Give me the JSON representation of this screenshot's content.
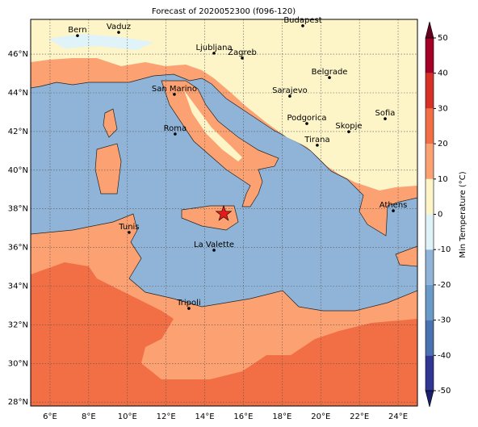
{
  "chart_data": {
    "type": "map",
    "title": "Forecast of 2020052300 (f096-120)",
    "xlim": [
      5,
      25
    ],
    "ylim": [
      27.8,
      47.8
    ],
    "xticks": [
      {
        "value": 6,
        "label": "6°E"
      },
      {
        "value": 8,
        "label": "8°E"
      },
      {
        "value": 10,
        "label": "10°E"
      },
      {
        "value": 12,
        "label": "12°E"
      },
      {
        "value": 14,
        "label": "14°E"
      },
      {
        "value": 16,
        "label": "16°E"
      },
      {
        "value": 18,
        "label": "18°E"
      },
      {
        "value": 20,
        "label": "20°E"
      },
      {
        "value": 22,
        "label": "22°E"
      },
      {
        "value": 24,
        "label": "24°E"
      }
    ],
    "yticks": [
      {
        "value": 28,
        "label": "28°N"
      },
      {
        "value": 30,
        "label": "30°N"
      },
      {
        "value": 32,
        "label": "32°N"
      },
      {
        "value": 34,
        "label": "34°N"
      },
      {
        "value": 36,
        "label": "36°N"
      },
      {
        "value": 38,
        "label": "38°N"
      },
      {
        "value": 40,
        "label": "40°N"
      },
      {
        "value": 42,
        "label": "42°N"
      },
      {
        "value": 44,
        "label": "44°N"
      },
      {
        "value": 46,
        "label": "46°N"
      }
    ],
    "grid": true,
    "cities": [
      {
        "name": "Bern",
        "lon": 7.42,
        "lat": 46.96
      },
      {
        "name": "Vaduz",
        "lon": 9.55,
        "lat": 47.13
      },
      {
        "name": "Budapest",
        "lon": 19.07,
        "lat": 47.47
      },
      {
        "name": "Ljubljana",
        "lon": 14.48,
        "lat": 46.05
      },
      {
        "name": "Zagreb",
        "lon": 15.94,
        "lat": 45.8
      },
      {
        "name": "Belgrade",
        "lon": 20.45,
        "lat": 44.79
      },
      {
        "name": "San Marino",
        "lon": 12.43,
        "lat": 43.92
      },
      {
        "name": "Sarajevo",
        "lon": 18.4,
        "lat": 43.83
      },
      {
        "name": "Sofia",
        "lon": 23.33,
        "lat": 42.66
      },
      {
        "name": "Podgorica",
        "lon": 19.28,
        "lat": 42.41
      },
      {
        "name": "Skopje",
        "lon": 21.45,
        "lat": 41.99
      },
      {
        "name": "Roma",
        "lon": 12.47,
        "lat": 41.87
      },
      {
        "name": "Tirana",
        "lon": 19.82,
        "lat": 41.29
      },
      {
        "name": "Athens",
        "lon": 23.75,
        "lat": 37.9
      },
      {
        "name": "Tunis",
        "lon": 10.09,
        "lat": 36.78
      },
      {
        "name": "La Valette",
        "lon": 14.48,
        "lat": 35.86
      },
      {
        "name": "Tripoli",
        "lon": 13.18,
        "lat": 32.85
      }
    ],
    "marker": {
      "lon": 14.98,
      "lat": 37.74,
      "color": "#e31a1c"
    },
    "colorbar": {
      "label": "Min Temperature (°C)",
      "levels": [
        -50,
        -40,
        -30,
        -20,
        -10,
        0,
        10,
        20,
        30,
        40,
        50
      ],
      "colors": [
        "#313695",
        "#4a72b0",
        "#6a9ac8",
        "#90b4d8",
        "#dff2f8",
        "#fdf5c8",
        "#fca272",
        "#f26f45",
        "#d73027",
        "#a50026"
      ],
      "under": "#1a1f6e",
      "over": "#67001f"
    }
  }
}
